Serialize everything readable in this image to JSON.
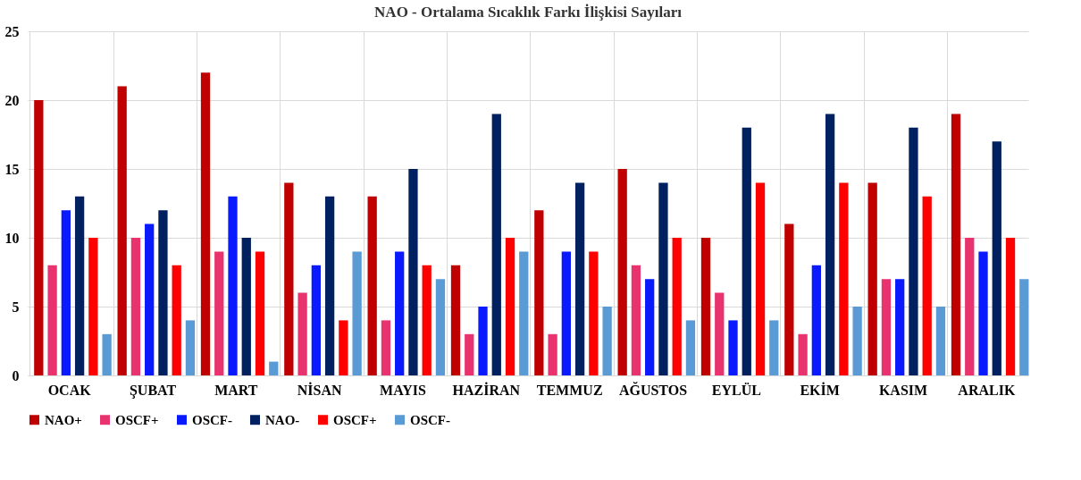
{
  "chart_data": {
    "type": "bar",
    "title": "NAO - Ortalama Sıcaklık Farkı İlişkisi Sayıları",
    "categories": [
      "OCAK",
      "ŞUBAT",
      "MART",
      "NİSAN",
      "MAYIS",
      "HAZİRAN",
      "TEMMUZ",
      "AĞUSTOS",
      "EYLÜL",
      "EKİM",
      "KASIM",
      "ARALIK"
    ],
    "series": [
      {
        "name": "NAO+",
        "color": "#c00000",
        "values": [
          20,
          21,
          22,
          14,
          13,
          8,
          12,
          15,
          10,
          11,
          14,
          19
        ]
      },
      {
        "name": "OSCF+",
        "color": "#e8336e",
        "values": [
          8,
          10,
          9,
          6,
          4,
          3,
          3,
          8,
          6,
          3,
          7,
          10
        ]
      },
      {
        "name": "OSCF-",
        "color": "#0a1aff",
        "values": [
          12,
          11,
          13,
          8,
          9,
          5,
          9,
          7,
          4,
          8,
          7,
          9
        ]
      },
      {
        "name": "NAO-",
        "color": "#002060",
        "values": [
          13,
          12,
          10,
          13,
          15,
          19,
          14,
          14,
          18,
          19,
          18,
          17
        ]
      },
      {
        "name": "OSCF+",
        "color": "#ff0000",
        "values": [
          10,
          8,
          9,
          4,
          8,
          10,
          9,
          10,
          14,
          14,
          13,
          10
        ]
      },
      {
        "name": "OSCF-",
        "color": "#5b9bd5",
        "values": [
          3,
          4,
          1,
          9,
          7,
          9,
          5,
          4,
          4,
          5,
          5,
          7
        ]
      }
    ],
    "ylim": [
      0,
      25
    ],
    "yticks": [
      0,
      5,
      10,
      15,
      20,
      25
    ],
    "grid": true,
    "legend": "bottom"
  }
}
